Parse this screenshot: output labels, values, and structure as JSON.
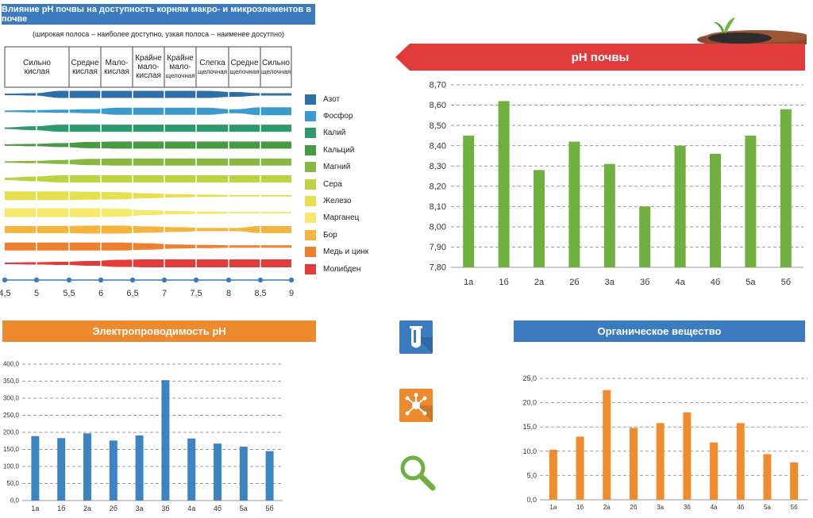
{
  "ph_table": {
    "title": "Влияние pH почвы на доступность корням макро- и микроэлементов в почве",
    "subtitle": "(широкая полоса – наиболее доступно, узкая полоса – наименее досутпно)",
    "headers": [
      {
        "l1": "Сильно",
        "l2": "кислая",
        "l3": ""
      },
      {
        "l1": "Средне",
        "l2": "кислая",
        "l3": ""
      },
      {
        "l1": "Мало-",
        "l2": "кислая",
        "l3": ""
      },
      {
        "l1": "Крайне",
        "l2": "мало-",
        "l3": "кислая"
      },
      {
        "l1": "Крайне",
        "l2": "мало-",
        "l3": "щелочная"
      },
      {
        "l1": "Слегка",
        "l2": "щелочная",
        "l3": ""
      },
      {
        "l1": "Средне",
        "l2": "щелочная",
        "l3": ""
      },
      {
        "l1": "Сильно",
        "l2": "щелочная",
        "l3": ""
      }
    ],
    "axis_ticks": [
      "4,5",
      "5",
      "5,5",
      "6",
      "6,5",
      "7",
      "7,5",
      "8",
      "8,5",
      "9"
    ],
    "nutrients": [
      {
        "name": "Азот",
        "color": "#2f6fa8",
        "widths": [
          2,
          3,
          9,
          9,
          9,
          9,
          9,
          9,
          6,
          3,
          3
        ]
      },
      {
        "name": "Фосфор",
        "color": "#3b9bcf",
        "widths": [
          2,
          3,
          4,
          5,
          9,
          9,
          9,
          9,
          5,
          10,
          10
        ]
      },
      {
        "name": "Калий",
        "color": "#2e9a6b",
        "widths": [
          2,
          5,
          9,
          9,
          9,
          9,
          9,
          9,
          9,
          9,
          9
        ]
      },
      {
        "name": "Кальций",
        "color": "#4a9a44",
        "widths": [
          2,
          3,
          5,
          8,
          9,
          9,
          9,
          9,
          9,
          9,
          9
        ]
      },
      {
        "name": "Магний",
        "color": "#86b842",
        "widths": [
          2,
          3,
          5,
          8,
          9,
          9,
          9,
          9,
          9,
          9,
          9
        ]
      },
      {
        "name": "Сера",
        "color": "#bdd23e",
        "widths": [
          3,
          6,
          9,
          9,
          9,
          9,
          9,
          9,
          9,
          9,
          9
        ]
      },
      {
        "name": "Железо",
        "color": "#e6df4f",
        "widths": [
          11,
          11,
          11,
          10,
          9,
          6,
          4,
          3,
          2,
          2,
          2
        ]
      },
      {
        "name": "Марганец",
        "color": "#f5e86a",
        "widths": [
          11,
          11,
          11,
          11,
          10,
          6,
          4,
          3,
          2,
          2,
          2
        ]
      },
      {
        "name": "Бор",
        "color": "#f4b43f",
        "widths": [
          9,
          9,
          9,
          10,
          10,
          8,
          6,
          4,
          4,
          9,
          9
        ]
      },
      {
        "name": "Медь и цинк",
        "color": "#ee7f2c",
        "widths": [
          10,
          10,
          10,
          10,
          10,
          8,
          5,
          4,
          3,
          3,
          3
        ]
      },
      {
        "name": "Молибден",
        "color": "#e23b3b",
        "widths": [
          2,
          3,
          4,
          6,
          9,
          10,
          10,
          10,
          10,
          10,
          10
        ]
      }
    ]
  },
  "ph_chart": {
    "banner": "pH почвы",
    "banner_color": "#e23b3b",
    "bar_color": "#6fb040"
  },
  "ec_chart": {
    "banner": "Электропроводимость pH",
    "banner_color": "#ee8a2e",
    "bar_color": "#3d85c2"
  },
  "om_chart": {
    "banner": "Органическое вещество",
    "banner_color": "#3b7bbf",
    "bar_color": "#f08c2e"
  },
  "icons": {
    "test_tube_bg": "#3b7bbf",
    "molecule_bg": "#ee8a2e",
    "magnifier_color": "#6fb040",
    "names": [
      "test-tube-icon",
      "molecule-icon",
      "magnifier-icon",
      "soil-sprout-icon"
    ]
  },
  "chart_data": [
    {
      "type": "bar",
      "title": "pH почвы",
      "categories": [
        "1а",
        "1б",
        "2а",
        "2б",
        "3а",
        "3б",
        "4а",
        "4б",
        "5а",
        "5б"
      ],
      "values": [
        8.45,
        8.62,
        8.28,
        8.42,
        8.31,
        8.1,
        8.4,
        8.36,
        8.45,
        8.58
      ],
      "yticks": [
        "7,80",
        "7,90",
        "8,00",
        "8,10",
        "8,20",
        "8,30",
        "8,40",
        "8,50",
        "8,60",
        "8,70"
      ],
      "ylim": [
        7.8,
        8.7
      ],
      "grid": true
    },
    {
      "type": "bar",
      "title": "Электропроводимость pH",
      "categories": [
        "1а",
        "1б",
        "2а",
        "2б",
        "3а",
        "3б",
        "4а",
        "4б",
        "5а",
        "5б"
      ],
      "values": [
        189,
        183,
        197,
        176,
        191,
        353,
        182,
        167,
        158,
        145
      ],
      "yticks": [
        "0,0",
        "50,0",
        "100,0",
        "150,0",
        "200,0",
        "250,0",
        "300,0",
        "350,0",
        "400,0"
      ],
      "ylim": [
        0,
        400
      ],
      "grid": true
    },
    {
      "type": "bar",
      "title": "Органическое вещество",
      "categories": [
        "1а",
        "1б",
        "2а",
        "2б",
        "3а",
        "3б",
        "4а",
        "4б",
        "5а",
        "5б"
      ],
      "values": [
        10.3,
        13.0,
        22.6,
        14.8,
        15.8,
        18.0,
        11.8,
        15.8,
        9.4,
        7.7
      ],
      "yticks": [
        "0,0",
        "5,0",
        "10,0",
        "15,0",
        "20,0",
        "25,0"
      ],
      "ylim": [
        0,
        25
      ],
      "grid": true
    }
  ]
}
